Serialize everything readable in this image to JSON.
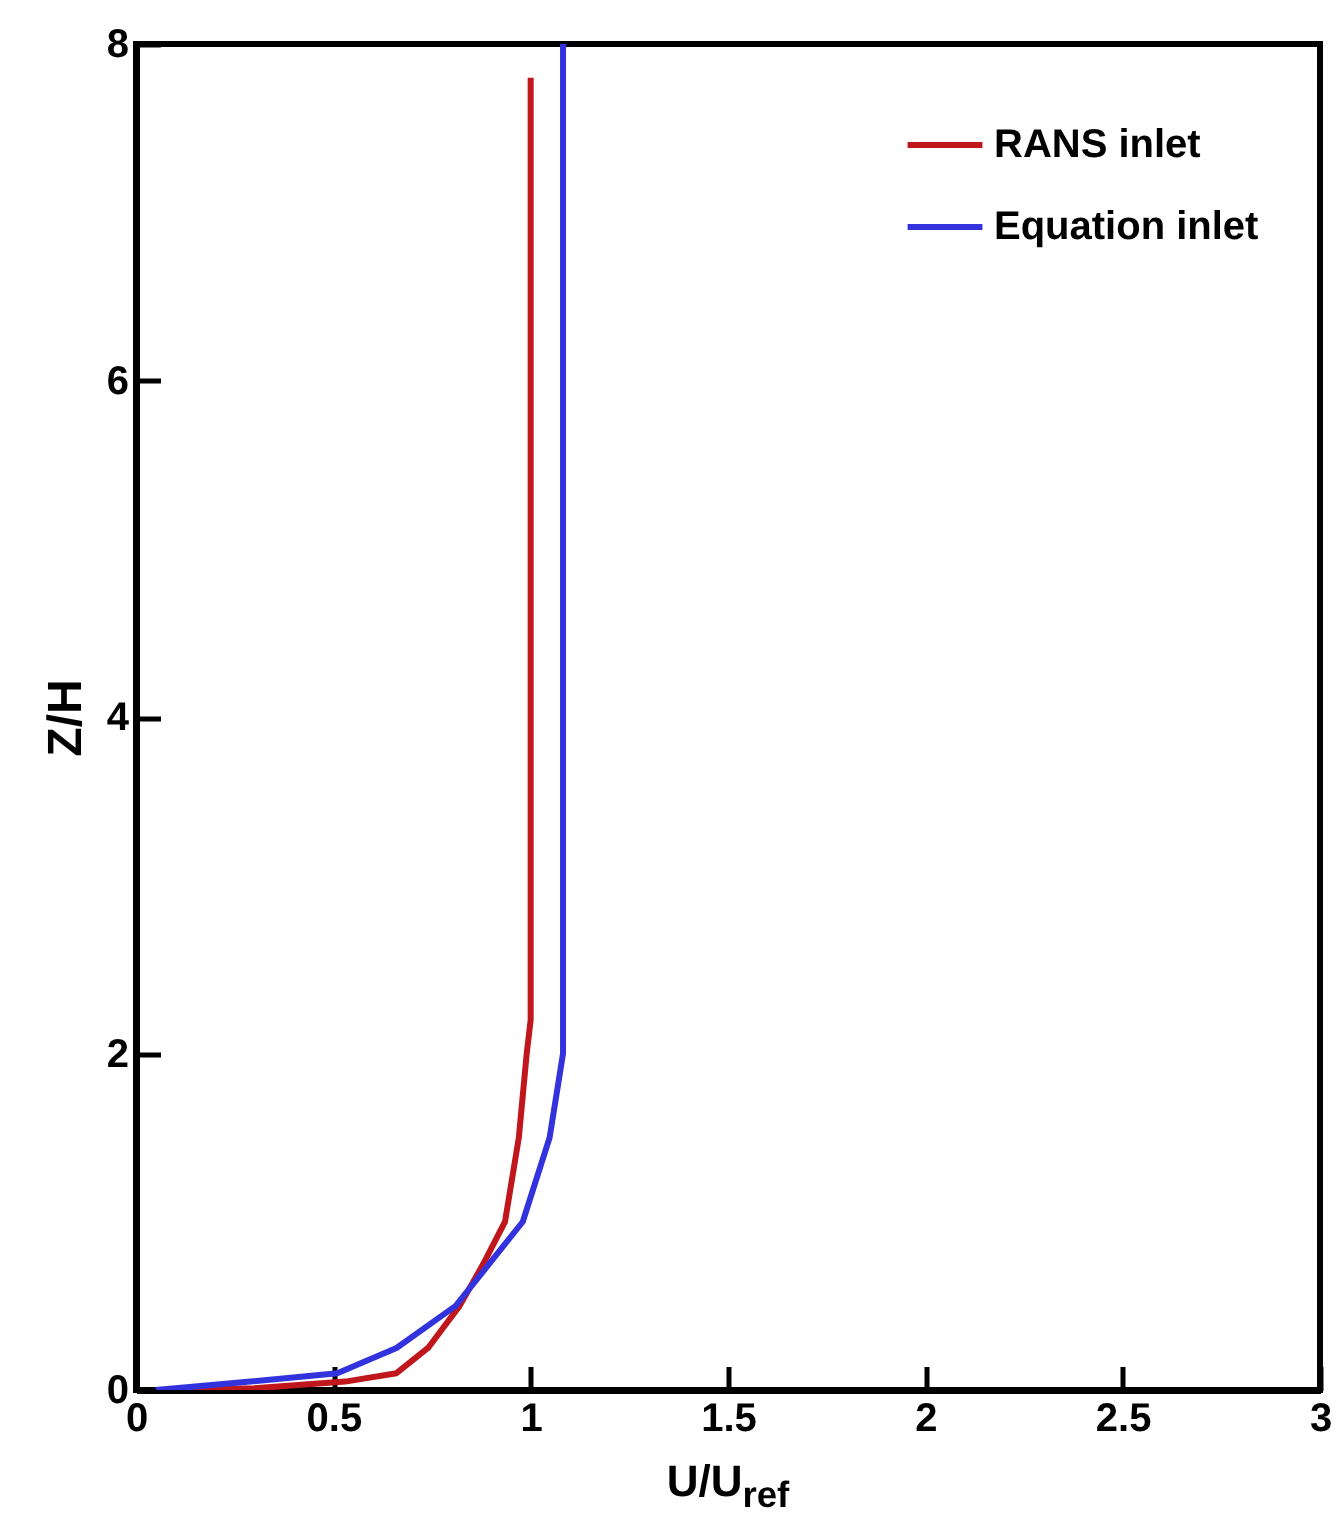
{
  "chart_data": {
    "type": "line",
    "xlabel": "U/U$_{ref}$",
    "ylabel": "Z/H",
    "xlim": [
      0,
      3
    ],
    "ylim": [
      0,
      8
    ],
    "xticks": [
      0,
      0.5,
      1,
      1.5,
      2,
      2.5,
      3
    ],
    "yticks": [
      0,
      2,
      4,
      6,
      8
    ],
    "grid": false,
    "legend": "top right",
    "line_style": "solid",
    "marker": "none",
    "series": [
      {
        "name": "RANS inlet",
        "color": "#c0171c",
        "x": [
          0.1,
          0.3,
          0.53,
          0.66,
          0.74,
          0.82,
          0.88,
          0.935,
          0.97,
          0.99,
          1.0,
          1.0
        ],
        "values": [
          0,
          0.01,
          0.05,
          0.1,
          0.25,
          0.5,
          0.75,
          1.0,
          1.5,
          2.0,
          2.2,
          7.8
        ]
      },
      {
        "name": "Equation inlet",
        "color": "#3333dd",
        "x": [
          0.05,
          0.1,
          0.29,
          0.51,
          0.66,
          0.81,
          0.98,
          1.048,
          1.082,
          1.082
        ],
        "values": [
          0,
          0.01,
          0.05,
          0.1,
          0.25,
          0.5,
          1.0,
          1.5,
          2.0,
          8
        ]
      }
    ]
  }
}
